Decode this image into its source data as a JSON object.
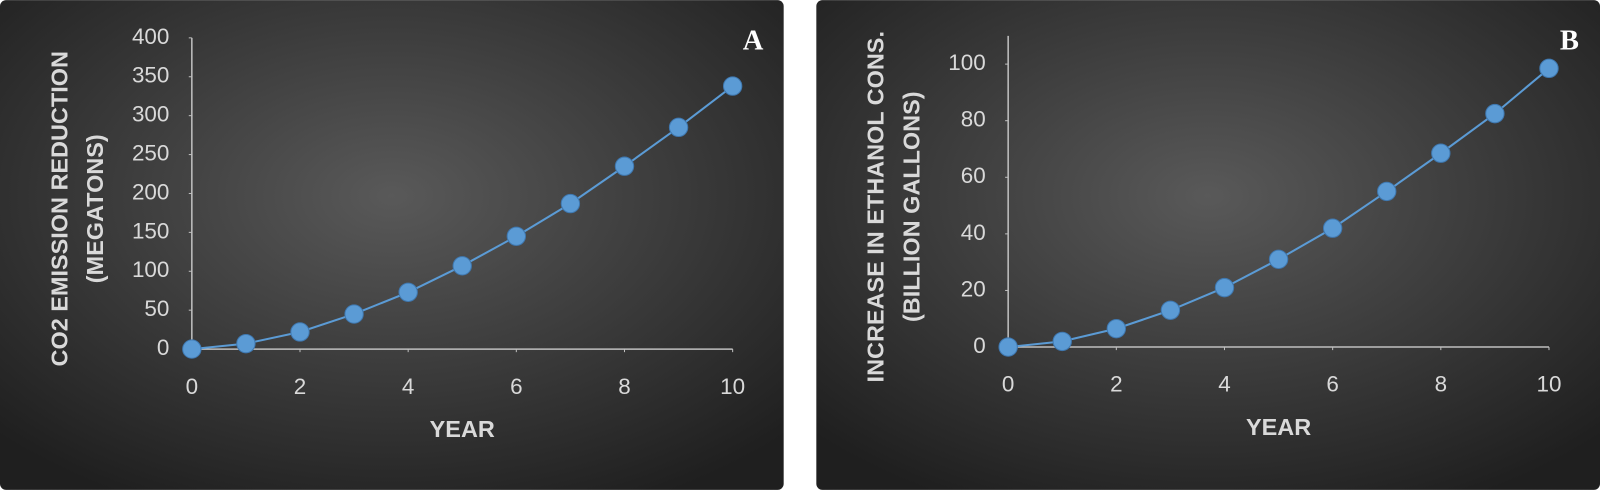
{
  "chart_data": [
    {
      "type": "line",
      "panel_label": "A",
      "ylabel": [
        "CO2 EMISSION REDUCTION",
        "(MEGATONS)"
      ],
      "xlabel": "YEAR",
      "x": [
        0,
        1,
        2,
        3,
        4,
        5,
        6,
        7,
        8,
        9,
        10
      ],
      "values": [
        0,
        7,
        22,
        45,
        73,
        107,
        145,
        187,
        235,
        285,
        338
      ],
      "color": "#5b9bd5",
      "xlim": [
        0,
        10
      ],
      "xticks": [
        0,
        2,
        4,
        6,
        8,
        10
      ],
      "ylim": [
        0,
        400
      ],
      "yticks": [
        0,
        50,
        100,
        150,
        200,
        250,
        300,
        350,
        400
      ]
    },
    {
      "type": "line",
      "panel_label": "B",
      "ylabel": [
        "INCREASE IN ETHANOL CONS.",
        "(BILLION GALLONS)"
      ],
      "xlabel": "YEAR",
      "x": [
        0,
        1,
        2,
        3,
        4,
        5,
        6,
        7,
        8,
        9,
        10
      ],
      "values": [
        0,
        2,
        6.5,
        13,
        21,
        31,
        42,
        55,
        68.5,
        82.5,
        98.5
      ],
      "color": "#5b9bd5",
      "xlim": [
        0,
        10
      ],
      "xticks": [
        0,
        2,
        4,
        6,
        8,
        10
      ],
      "ylim": [
        0,
        110
      ],
      "yticks": [
        0,
        20,
        40,
        60,
        80,
        100
      ]
    }
  ]
}
